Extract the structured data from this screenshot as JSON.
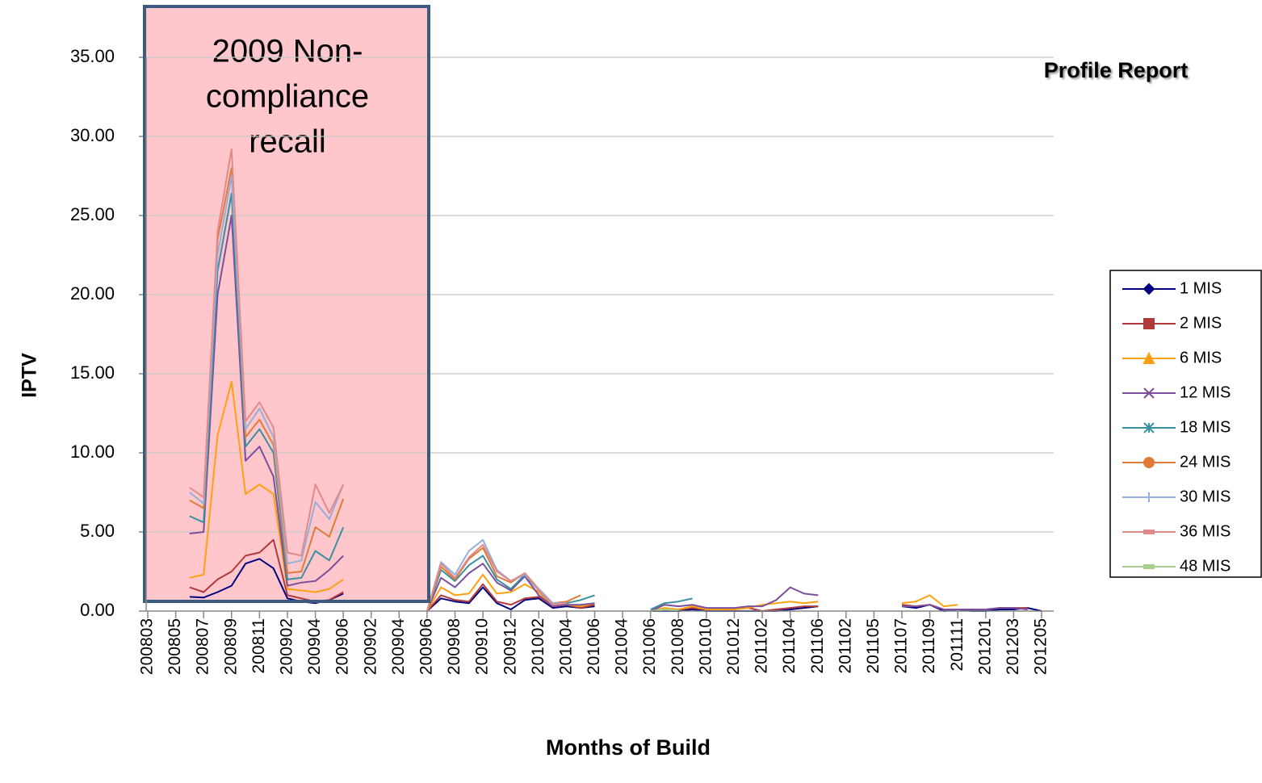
{
  "chart_data": {
    "type": "line",
    "annotation": [
      "2009 Non-",
      "compliance",
      "recall"
    ],
    "title": "Profile Report",
    "x_label": "Months of Build",
    "y_label": "IPTV",
    "ylim": [
      0,
      35
    ],
    "yticks": [
      {
        "value": 0,
        "label": "0.00"
      },
      {
        "value": 5,
        "label": "5.00"
      },
      {
        "value": 10,
        "label": "10.00"
      },
      {
        "value": 15,
        "label": "15.00"
      },
      {
        "value": 20,
        "label": "20.00"
      },
      {
        "value": 25,
        "label": "25.00"
      },
      {
        "value": 30,
        "label": "30.00"
      },
      {
        "value": 35,
        "label": "35.00"
      }
    ],
    "grid": true,
    "legend": "right",
    "categories": [
      "200803",
      null,
      "200805",
      null,
      "200807",
      null,
      "200809",
      null,
      "200811",
      null,
      "200902",
      null,
      "200904",
      null,
      "200906",
      null,
      "200902",
      null,
      "200904",
      null,
      "200906",
      null,
      "200908",
      null,
      "200910",
      null,
      "200912",
      null,
      "201002",
      null,
      "201004",
      null,
      "201006",
      null,
      "201004",
      null,
      "201006",
      null,
      "201008",
      null,
      "201010",
      null,
      "201012",
      null,
      "201102",
      null,
      "201104",
      null,
      "201106",
      null,
      "201102",
      null,
      "201105",
      null,
      "201107",
      null,
      "201109",
      null,
      "201111",
      null,
      "201201",
      null,
      "201203",
      null,
      "201205"
    ],
    "series": [
      {
        "name": "1 MIS",
        "color": "#000080",
        "marker": "diamond",
        "values": [
          null,
          null,
          null,
          0.9,
          0.85,
          1.2,
          1.6,
          3.0,
          3.3,
          2.7,
          0.8,
          0.6,
          0.5,
          0.7,
          1.1,
          null,
          null,
          null,
          null,
          null,
          0,
          0.8,
          0.6,
          0.5,
          1.5,
          0.5,
          0.1,
          0.7,
          0.8,
          0.2,
          0.3,
          0.2,
          0.3,
          null,
          null,
          null,
          0,
          0,
          0,
          0.1,
          0,
          0,
          0,
          0,
          0,
          0,
          0.1,
          0.2,
          0.3,
          null,
          null,
          null,
          null,
          null,
          0.3,
          0.2,
          0.4,
          0,
          0.1,
          0,
          0,
          0.1,
          0.1,
          0.2,
          0
        ]
      },
      {
        "name": "2 MIS",
        "color": "#b03a3a",
        "marker": "square",
        "values": [
          null,
          null,
          null,
          1.5,
          1.2,
          2.0,
          2.5,
          3.5,
          3.7,
          4.5,
          1.0,
          0.8,
          0.6,
          0.7,
          1.2,
          null,
          null,
          null,
          null,
          null,
          0,
          1.0,
          0.7,
          0.6,
          1.7,
          0.6,
          0.4,
          0.8,
          0.9,
          0.3,
          0.4,
          0.2,
          0.4,
          null,
          null,
          null,
          0,
          0.1,
          0.1,
          0.2,
          0.1,
          0.1,
          0.1,
          0.2,
          0,
          0.1,
          0.2,
          0.3,
          0.3,
          null,
          null,
          null,
          null,
          null,
          0.4,
          0.3,
          0.4,
          0.1,
          0.1,
          0.1,
          0.1,
          0.2,
          0.2,
          0.2,
          null
        ]
      },
      {
        "name": "6 MIS",
        "color": "#ffa010",
        "marker": "triangle",
        "values": [
          null,
          null,
          null,
          2.1,
          2.3,
          11.1,
          14.5,
          7.4,
          8.0,
          7.4,
          1.4,
          1.3,
          1.2,
          1.4,
          2.0,
          null,
          null,
          null,
          null,
          null,
          0,
          1.5,
          1.0,
          1.1,
          2.3,
          1.1,
          1.2,
          1.7,
          1.2,
          0.3,
          0.4,
          0.3,
          0.5,
          null,
          null,
          null,
          0,
          0.2,
          0.1,
          0.3,
          0.1,
          0.1,
          0.1,
          0.2,
          0.4,
          0.5,
          0.6,
          0.5,
          0.6,
          null,
          null,
          null,
          null,
          null,
          0.5,
          0.6,
          1.0,
          0.3,
          0.4,
          null,
          null,
          null,
          null,
          null,
          null
        ]
      },
      {
        "name": "12 MIS",
        "color": "#7b4f9d",
        "marker": "x",
        "values": [
          null,
          null,
          null,
          4.9,
          5.0,
          20.0,
          25.0,
          9.5,
          10.4,
          8.5,
          1.6,
          1.8,
          1.9,
          2.6,
          3.5,
          null,
          null,
          null,
          null,
          null,
          0,
          2.1,
          1.5,
          2.4,
          3.0,
          1.8,
          1.3,
          2.2,
          1.0,
          0.3,
          0.4,
          0.4,
          0.5,
          null,
          null,
          null,
          0,
          0.4,
          0.3,
          0.4,
          0.2,
          0.2,
          0.2,
          0.3,
          0.3,
          0.7,
          1.5,
          1.1,
          1.0,
          null,
          null,
          null,
          null,
          null,
          0.3,
          0.3,
          0.4,
          0.1,
          0.1,
          0.1,
          0.1,
          0.2,
          0.2,
          0.1,
          null
        ]
      },
      {
        "name": "18 MIS",
        "color": "#3a8fa0",
        "marker": "star",
        "values": [
          null,
          null,
          null,
          6.0,
          5.6,
          21.5,
          26.4,
          10.4,
          11.5,
          10.0,
          2.0,
          2.1,
          3.8,
          3.2,
          5.3,
          null,
          null,
          null,
          null,
          null,
          0,
          2.6,
          1.9,
          2.9,
          3.5,
          2.0,
          1.4,
          2.3,
          1.3,
          0.4,
          0.5,
          0.7,
          1.0,
          null,
          null,
          null,
          0.1,
          0.5,
          0.6,
          0.8,
          null,
          null,
          null,
          null,
          null,
          null,
          null,
          null,
          null,
          null,
          null,
          null,
          null,
          null,
          null,
          null,
          null,
          null,
          null,
          null,
          null,
          null,
          null,
          null,
          null
        ]
      },
      {
        "name": "24 MIS",
        "color": "#e07b39",
        "marker": "circle",
        "values": [
          null,
          null,
          null,
          7.0,
          6.5,
          23.5,
          28.0,
          11.0,
          12.1,
          10.5,
          2.4,
          2.5,
          5.3,
          4.7,
          7.1,
          null,
          null,
          null,
          null,
          null,
          0,
          2.8,
          2.0,
          3.3,
          4.0,
          2.2,
          1.8,
          2.4,
          1.4,
          0.5,
          0.6,
          1.0,
          null,
          null,
          null,
          null,
          null,
          null,
          null,
          null,
          null,
          null,
          null,
          null,
          null,
          null,
          null,
          null,
          null,
          null,
          null,
          null,
          null,
          null,
          null,
          null,
          null,
          null,
          null,
          null,
          null,
          null,
          null,
          null,
          null
        ]
      },
      {
        "name": "30 MIS",
        "color": "#95aedb",
        "marker": "plus",
        "values": [
          null,
          null,
          null,
          7.5,
          6.8,
          22.5,
          27.5,
          11.5,
          12.8,
          11.0,
          3.0,
          3.2,
          6.9,
          5.8,
          8.0,
          null,
          null,
          null,
          null,
          null,
          0,
          3.1,
          2.3,
          3.8,
          4.5,
          2.6,
          1.9,
          2.3,
          1.4,
          0.5,
          0.5,
          null,
          null,
          null,
          null,
          null,
          null,
          null,
          null,
          null,
          null,
          null,
          null,
          null,
          null,
          null,
          null,
          null,
          null,
          null,
          null,
          null,
          null,
          null,
          null,
          null,
          null,
          null,
          null,
          null,
          null,
          null,
          null,
          null,
          null
        ]
      },
      {
        "name": "36 MIS",
        "color": "#e08a8a",
        "marker": "dash",
        "values": [
          null,
          null,
          null,
          7.8,
          7.2,
          24.0,
          29.2,
          12.0,
          13.2,
          11.6,
          3.7,
          3.5,
          8.0,
          6.2,
          8.0,
          null,
          null,
          null,
          null,
          null,
          0,
          3.0,
          2.1,
          3.4,
          4.2,
          2.5,
          1.9,
          2.4,
          1.3,
          0.4,
          0.5,
          null,
          null,
          null,
          null,
          null,
          null,
          null,
          null,
          null,
          null,
          null,
          null,
          null,
          null,
          null,
          null,
          null,
          null,
          null,
          null,
          null,
          null,
          null,
          null,
          null,
          null,
          null,
          null,
          null,
          null,
          null,
          null,
          null,
          null
        ]
      },
      {
        "name": "48 MIS",
        "color": "#a8d08d",
        "marker": "dash",
        "values": [
          null,
          null,
          null,
          null,
          null,
          null,
          null,
          null,
          null,
          null,
          null,
          null,
          null,
          null,
          null,
          null,
          null,
          null,
          null,
          null,
          null,
          null,
          null,
          null,
          null,
          null,
          null,
          null,
          null,
          null,
          null,
          null,
          null,
          null,
          null,
          null,
          0,
          0.1,
          0.05,
          null,
          null,
          null,
          null,
          null,
          null,
          null,
          null,
          null,
          null,
          null,
          null,
          null,
          null,
          null,
          null,
          null,
          null,
          null,
          null,
          null,
          null,
          null,
          null,
          null,
          null
        ]
      }
    ]
  }
}
